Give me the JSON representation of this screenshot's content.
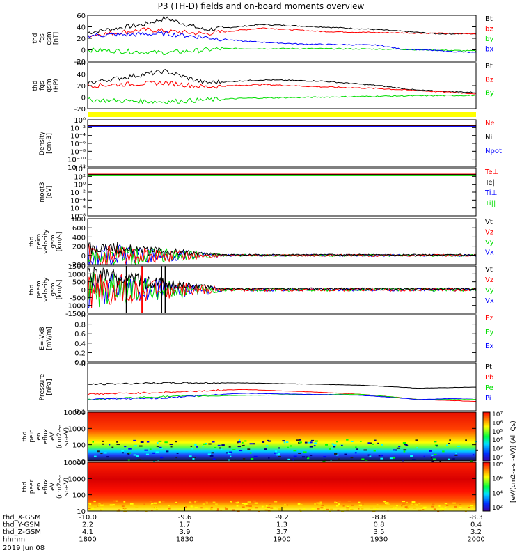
{
  "title": "P3 (TH-D) fields and on-board moments overview",
  "colors": {
    "black": "#000000",
    "red": "#ff0000",
    "green": "#00dd00",
    "blue": "#0000ff",
    "yellow": "#ffff00",
    "bg": "#ffffff"
  },
  "chart_data": [
    {
      "type": "line",
      "ylabel": [
        "thd",
        "fgs",
        "gsm",
        "[nT]"
      ],
      "ylim": [
        -20,
        60
      ],
      "yticks": [
        "60",
        "40",
        "20",
        "0",
        "-20"
      ],
      "series": [
        {
          "name": "Bt",
          "color": "black"
        },
        {
          "name": "bz",
          "color": "red"
        },
        {
          "name": "by",
          "color": "green"
        },
        {
          "name": "bx",
          "color": "blue"
        }
      ],
      "approx": {
        "Bt": [
          [
            0,
            30
          ],
          [
            0.15,
            45
          ],
          [
            0.2,
            55
          ],
          [
            0.3,
            35
          ],
          [
            0.45,
            44
          ],
          [
            0.6,
            40
          ],
          [
            0.75,
            35
          ],
          [
            0.9,
            28
          ],
          [
            1,
            28
          ]
        ],
        "bz": [
          [
            0,
            25
          ],
          [
            0.15,
            35
          ],
          [
            0.3,
            28
          ],
          [
            0.45,
            38
          ],
          [
            0.6,
            32
          ],
          [
            0.75,
            30
          ],
          [
            1,
            28
          ]
        ],
        "by": [
          [
            0,
            0
          ],
          [
            0.2,
            -5
          ],
          [
            0.35,
            2
          ],
          [
            0.6,
            2
          ],
          [
            0.8,
            1
          ],
          [
            1,
            -2
          ]
        ],
        "bx": [
          [
            0,
            25
          ],
          [
            0.2,
            28
          ],
          [
            0.3,
            22
          ],
          [
            0.4,
            15
          ],
          [
            0.55,
            10
          ],
          [
            0.75,
            8
          ],
          [
            0.8,
            2
          ],
          [
            1,
            -5
          ]
        ]
      }
    },
    {
      "type": "line",
      "ylabel": [
        "thd",
        "fgs",
        "gsm",
        "(HP)"
      ],
      "ylim": [
        -20,
        60
      ],
      "yticks": [
        "60",
        "40",
        "20",
        "0",
        "-20"
      ],
      "series": [
        {
          "name": "Bt",
          "color": "black"
        },
        {
          "name": "Bz",
          "color": "red"
        },
        {
          "name": "By",
          "color": "green"
        }
      ],
      "approx": {
        "Bt": [
          [
            0,
            25
          ],
          [
            0.2,
            45
          ],
          [
            0.3,
            25
          ],
          [
            0.45,
            30
          ],
          [
            0.6,
            28
          ],
          [
            0.75,
            20
          ],
          [
            0.85,
            12
          ],
          [
            1,
            8
          ]
        ],
        "Bz": [
          [
            0,
            20
          ],
          [
            0.2,
            25
          ],
          [
            0.3,
            18
          ],
          [
            0.45,
            22
          ],
          [
            0.6,
            18
          ],
          [
            0.75,
            15
          ],
          [
            1,
            6
          ]
        ],
        "By": [
          [
            0,
            -5
          ],
          [
            0.2,
            -8
          ],
          [
            0.4,
            -2
          ],
          [
            0.6,
            0
          ],
          [
            0.8,
            2
          ],
          [
            1,
            3
          ]
        ]
      }
    },
    {
      "type": "line",
      "ylabel": [
        "Density",
        "[cm-3]"
      ],
      "ylim": [
        -12,
        2
      ],
      "log": true,
      "yticks": [
        "10⁰",
        "10⁻²",
        "10⁻⁴",
        "10⁻⁶",
        "10⁻⁸",
        "10⁻¹⁰",
        "10⁻¹²"
      ],
      "series": [
        {
          "name": "Ne",
          "color": "red"
        },
        {
          "name": "Ni",
          "color": "black"
        },
        {
          "name": "Npot",
          "color": "blue"
        }
      ]
    },
    {
      "type": "line",
      "ylabel": [
        "moqt3",
        "[eV]"
      ],
      "ylim": [
        -10,
        4
      ],
      "log": true,
      "yticks": [
        "10⁴",
        "10²",
        "10⁰",
        "10⁻²",
        "10⁻⁴",
        "10⁻⁶",
        "10⁻⁸"
      ],
      "series": [
        {
          "name": "Te⊥",
          "color": "red"
        },
        {
          "name": "Te||",
          "color": "black"
        },
        {
          "name": "Ti⊥",
          "color": "blue"
        },
        {
          "name": "Ti||",
          "color": "green"
        }
      ]
    },
    {
      "type": "line",
      "ylabel": [
        "thd",
        "peim",
        "velocity",
        "gsm",
        "[km/s]"
      ],
      "ylim": [
        -200,
        800
      ],
      "yticks": [
        "800",
        "600",
        "400",
        "200",
        "0",
        "-200"
      ],
      "series": [
        {
          "name": "Vt",
          "color": "black"
        },
        {
          "name": "Vz",
          "color": "red"
        },
        {
          "name": "Vy",
          "color": "green"
        },
        {
          "name": "Vx",
          "color": "blue"
        }
      ]
    },
    {
      "type": "line",
      "ylabel": [
        "thd",
        "peem",
        "velocity",
        "gsm",
        "[km/s]"
      ],
      "ylim": [
        -1500,
        1500
      ],
      "yticks": [
        "1500",
        "1000",
        "500",
        "0",
        "-500",
        "-1000",
        "-1500"
      ],
      "series": [
        {
          "name": "Vt",
          "color": "black"
        },
        {
          "name": "Vz",
          "color": "red"
        },
        {
          "name": "Vy",
          "color": "green"
        },
        {
          "name": "Vx",
          "color": "blue"
        }
      ]
    },
    {
      "type": "line",
      "ylabel": [
        "E=-VxB",
        "[mV/m]"
      ],
      "ylim": [
        0,
        1
      ],
      "yticks": [
        "1.0",
        "0.8",
        "0.6",
        "0.4",
        "0.2",
        "0.0"
      ],
      "series": [
        {
          "name": "Ez",
          "color": "red"
        },
        {
          "name": "Ey",
          "color": "green"
        },
        {
          "name": "Ex",
          "color": "blue"
        }
      ]
    },
    {
      "type": "line",
      "ylabel": [
        "Pressure",
        "[nPa]"
      ],
      "ylim": [
        0.1,
        10
      ],
      "log": true,
      "yticks": [
        "1.0",
        "0.1"
      ],
      "series": [
        {
          "name": "Pt",
          "color": "black"
        },
        {
          "name": "Pb",
          "color": "red"
        },
        {
          "name": "Pe",
          "color": "green"
        },
        {
          "name": "Pi",
          "color": "blue"
        }
      ]
    },
    {
      "type": "heatmap",
      "ylabel": [
        "thd",
        "peir",
        "en",
        "eflux",
        "eV",
        "(cm2-s-",
        "sr-eV)"
      ],
      "ylim": [
        5,
        25000
      ],
      "log": true,
      "yticks": [
        "10000",
        "1000",
        "100",
        "10"
      ],
      "colorbar": {
        "label": "[eV/(cm2-s-sr-eV)] (All Qs)",
        "ticks": [
          "10⁷",
          "10⁶",
          "10⁵",
          "10⁴",
          "10³",
          "10²"
        ]
      }
    },
    {
      "type": "heatmap",
      "ylabel": [
        "thd",
        "peer",
        "en",
        "eflux",
        "eV",
        "(cm2-s-",
        "sr-eV)"
      ],
      "ylim": [
        5,
        25000
      ],
      "log": true,
      "yticks": [
        "10000",
        "1000",
        "100",
        "10"
      ],
      "colorbar": {
        "ticks": [
          "10⁸",
          "10⁶",
          "10⁴",
          "10²"
        ]
      }
    }
  ],
  "xaxis": {
    "rows": [
      {
        "label": "thd_X-GSM",
        "values": [
          "-10.0",
          "-9.6",
          "-9.2",
          "-8.8",
          "-8.3"
        ]
      },
      {
        "label": "thd_Y-GSM",
        "values": [
          "2.2",
          "1.7",
          "1.3",
          "0.8",
          "0.4"
        ]
      },
      {
        "label": "thd_Z-GSM",
        "values": [
          "4.1",
          "3.9",
          "3.7",
          "3.5",
          "3.2"
        ]
      },
      {
        "label": "hhmm",
        "values": [
          "1800",
          "1830",
          "1900",
          "1930",
          "2000"
        ]
      }
    ],
    "date": "2019 Jun 08"
  }
}
